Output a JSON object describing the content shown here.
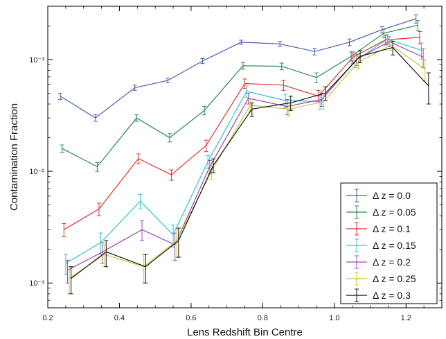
{
  "chart_data": {
    "type": "line",
    "xlabel": "Lens Redshift Bin Centre",
    "ylabel": "Contamination Fraction",
    "xlim": [
      0.2,
      1.3
    ],
    "ylim": [
      0.0006,
      0.3
    ],
    "yscale": "log",
    "x_ticks": [
      0.2,
      0.4,
      0.6,
      0.8,
      1.0,
      1.2
    ],
    "x_tick_labels": [
      "0.2",
      "0.4",
      "0.6",
      "0.8",
      "1.0",
      "1.2"
    ],
    "y_ticks": [
      0.001,
      0.01,
      0.1
    ],
    "y_tick_labels": [
      "10⁻³",
      "10⁻²",
      "10⁻¹"
    ],
    "grid": false,
    "legend_position": "bottom-right",
    "series": [
      {
        "name": "Δ z = 0.0",
        "color": "#4a5fb0",
        "x": [
          0.235,
          0.333,
          0.443,
          0.535,
          0.632,
          0.74,
          0.848,
          0.945,
          1.042,
          1.133,
          1.228
        ],
        "y": [
          0.047,
          0.03,
          0.056,
          0.065,
          0.097,
          0.143,
          0.138,
          0.118,
          0.143,
          0.185,
          0.232
        ],
        "yerr": [
          0.003,
          0.002,
          0.003,
          0.003,
          0.005,
          0.006,
          0.007,
          0.008,
          0.01,
          0.012,
          0.02
        ]
      },
      {
        "name": "Δ z = 0.05",
        "color": "#238a4a",
        "x": [
          0.24,
          0.338,
          0.448,
          0.54,
          0.637,
          0.745,
          0.853,
          0.95,
          1.047,
          1.138,
          1.233
        ],
        "y": [
          0.016,
          0.011,
          0.03,
          0.02,
          0.035,
          0.088,
          0.087,
          0.069,
          0.107,
          0.172,
          0.203
        ],
        "yerr": [
          0.0012,
          0.001,
          0.002,
          0.0017,
          0.003,
          0.006,
          0.006,
          0.007,
          0.01,
          0.015,
          0.02
        ]
      },
      {
        "name": "Δ z = 0.1",
        "color": "#e0302e",
        "x": [
          0.245,
          0.343,
          0.453,
          0.545,
          0.642,
          0.75,
          0.858,
          0.955,
          1.052,
          1.143,
          1.238
        ],
        "y": [
          0.003,
          0.0046,
          0.013,
          0.0093,
          0.017,
          0.061,
          0.059,
          0.047,
          0.105,
          0.15,
          0.158
        ],
        "yerr": [
          0.0004,
          0.0006,
          0.0013,
          0.001,
          0.002,
          0.006,
          0.006,
          0.006,
          0.012,
          0.015,
          0.02
        ]
      },
      {
        "name": "Δ z = 0.15",
        "color": "#2ec4c4",
        "x": [
          0.25,
          0.348,
          0.458,
          0.55,
          0.647,
          0.755,
          0.863,
          0.96,
          1.057,
          1.148,
          1.243
        ],
        "y": [
          0.0015,
          0.0023,
          0.0054,
          0.0027,
          0.0122,
          0.052,
          0.043,
          0.042,
          0.097,
          0.152,
          0.121
        ],
        "yerr": [
          0.0003,
          0.0005,
          0.0008,
          0.0006,
          0.0016,
          0.006,
          0.006,
          0.006,
          0.012,
          0.015,
          0.02
        ]
      },
      {
        "name": "Δ z = 0.2",
        "color": "#a043b5",
        "x": [
          0.255,
          0.353,
          0.463,
          0.555,
          0.652,
          0.76,
          0.868,
          0.965,
          1.062,
          1.153,
          1.248
        ],
        "y": [
          0.0013,
          0.0019,
          0.003,
          0.0022,
          0.011,
          0.045,
          0.038,
          0.044,
          0.1,
          0.145,
          0.105
        ],
        "yerr": [
          0.0003,
          0.0004,
          0.0006,
          0.0006,
          0.0015,
          0.005,
          0.006,
          0.006,
          0.012,
          0.015,
          0.02
        ]
      },
      {
        "name": "Δ z = 0.25",
        "color": "#c8c636",
        "x": [
          0.26,
          0.358,
          0.468,
          0.56,
          0.657,
          0.765,
          0.873,
          0.97,
          1.067,
          1.158,
          1.253
        ],
        "y": [
          0.0011,
          0.0018,
          0.0014,
          0.0024,
          0.01,
          0.039,
          0.036,
          0.042,
          0.095,
          0.135,
          0.082
        ],
        "yerr": [
          0.0003,
          0.0004,
          0.0004,
          0.0007,
          0.0015,
          0.005,
          0.005,
          0.006,
          0.012,
          0.015,
          0.018
        ]
      },
      {
        "name": "Δ z = 0.3",
        "color": "#111111",
        "x": [
          0.265,
          0.363,
          0.473,
          0.565,
          0.662,
          0.77,
          0.878,
          0.975,
          1.072,
          1.163,
          1.263
        ],
        "y": [
          0.0011,
          0.0019,
          0.0014,
          0.0024,
          0.0113,
          0.036,
          0.041,
          0.05,
          0.107,
          0.128,
          0.058
        ],
        "yerr": [
          0.0003,
          0.0005,
          0.0004,
          0.0007,
          0.0016,
          0.005,
          0.006,
          0.007,
          0.013,
          0.018,
          0.018
        ]
      }
    ]
  }
}
